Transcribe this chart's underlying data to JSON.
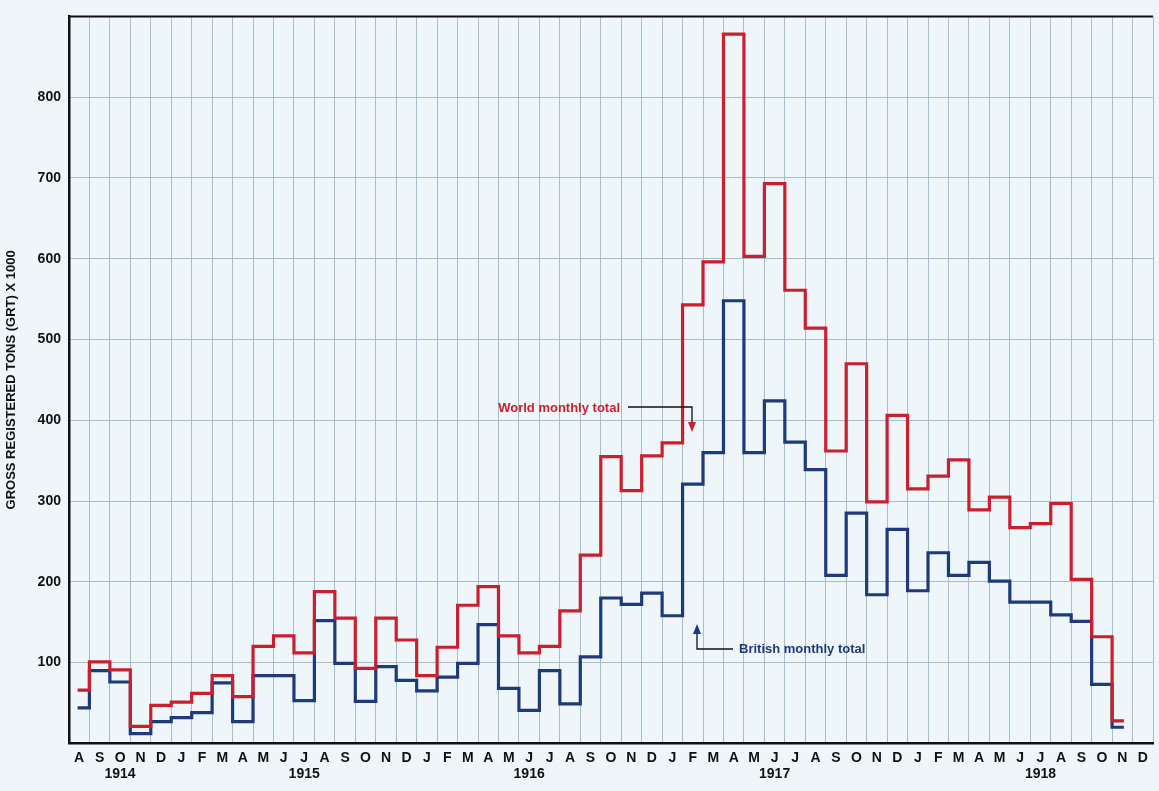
{
  "chart_data": {
    "type": "step",
    "ylabel": "GROSS REGISTERED TONS (GRT) X 1000",
    "categories": [
      "A",
      "S",
      "O\n1914",
      "N",
      "D",
      "J",
      "F",
      "M",
      "A",
      "M",
      "J",
      "J\n1915",
      "A",
      "S",
      "O",
      "N",
      "D",
      "J",
      "F",
      "M",
      "A",
      "M",
      "J\n1916",
      "J",
      "A",
      "S",
      "O",
      "N",
      "D",
      "J",
      "F",
      "M",
      "A",
      "M",
      "J\n1917",
      "J",
      "A",
      "S",
      "O",
      "N",
      "D",
      "J",
      "F",
      "M",
      "A",
      "M",
      "J",
      "J\n1918",
      "A",
      "S",
      "O",
      "N",
      "D"
    ],
    "series": [
      {
        "name": "World monthly total",
        "color": "#c8202f",
        "values": [
          66,
          101,
          91,
          21,
          47,
          51,
          62,
          84,
          58,
          120,
          133,
          112,
          188,
          155,
          93,
          155,
          128,
          84,
          119,
          171,
          194,
          133,
          112,
          120,
          164,
          233,
          355,
          313,
          356,
          372,
          543,
          596,
          878,
          603,
          693,
          561,
          514,
          362,
          470,
          299,
          406,
          315,
          331,
          351,
          289,
          305,
          267,
          272,
          297,
          203,
          132,
          28,
          null
        ]
      },
      {
        "name": "British monthly total",
        "color": "#1f3a7a",
        "values": [
          44,
          90,
          76,
          12,
          27,
          32,
          38,
          75,
          27,
          84,
          84,
          53,
          152,
          99,
          52,
          95,
          78,
          65,
          82,
          99,
          147,
          68,
          41,
          90,
          49,
          107,
          180,
          172,
          186,
          158,
          321,
          360,
          548,
          360,
          424,
          373,
          339,
          208,
          285,
          184,
          265,
          189,
          236,
          208,
          224,
          201,
          175,
          175,
          159,
          151,
          73,
          20,
          null
        ]
      }
    ],
    "ylim": [
      0,
      900
    ],
    "yticks": [
      100,
      200,
      300,
      400,
      500,
      600,
      700,
      800
    ],
    "grid": true
  }
}
